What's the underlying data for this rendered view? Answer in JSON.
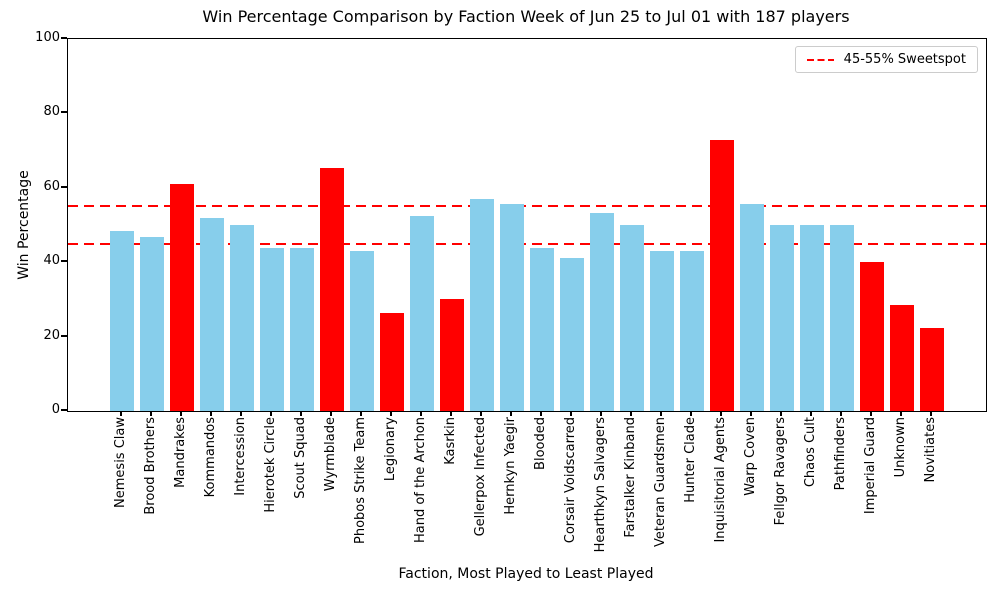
{
  "chart_data": {
    "type": "bar",
    "title": "Win Percentage Comparison by Faction Week of Jun 25 to Jul 01 with 187 players",
    "xlabel": "Faction, Most Played to Least Played",
    "ylabel": "Win Percentage",
    "ylim": [
      0,
      100
    ],
    "yticks": [
      0,
      20,
      40,
      60,
      80,
      100
    ],
    "grid": false,
    "legend": {
      "label": "45-55% Sweetspot",
      "position": "upper right",
      "line_style": "dashed",
      "line_color": "#ff0000"
    },
    "reference_lines": [
      45,
      55
    ],
    "colors": {
      "default_bar": "#87ceeb",
      "outlier_bar": "#ff0000",
      "reference_line": "#ff0000"
    },
    "categories": [
      "Nemesis Claw",
      "Brood Brothers",
      "Mandrakes",
      "Kommandos",
      "Intercession",
      "Hierotek Circle",
      "Scout Squad",
      "Wyrmblade",
      "Phobos Strike Team",
      "Legionary",
      "Hand of the Archon",
      "Kasrkin",
      "Gellerpox Infected",
      "Hernkyn Yaegir",
      "Blooded",
      "Corsair Voidscarred",
      "Hearthkyn Salvagers",
      "Farstalker Kinband",
      "Veteran Guardsmen",
      "Hunter Clade",
      "Inquisitorial Agents",
      "Warp Coven",
      "Fellgor Ravagers",
      "Chaos Cult",
      "Pathfinders",
      "Imperial Guard",
      "Unknown",
      "Novitiates"
    ],
    "values": [
      48.4,
      46.8,
      60.9,
      51.8,
      50.0,
      43.9,
      43.7,
      65.4,
      42.9,
      26.3,
      52.4,
      30.0,
      57.1,
      55.6,
      43.9,
      41.2,
      53.3,
      50.0,
      42.9,
      42.9,
      72.9,
      55.6,
      50.0,
      50.0,
      50.0,
      40.0,
      28.6,
      22.2
    ],
    "bar_colors": [
      "#87ceeb",
      "#87ceeb",
      "#ff0000",
      "#87ceeb",
      "#87ceeb",
      "#87ceeb",
      "#87ceeb",
      "#ff0000",
      "#87ceeb",
      "#ff0000",
      "#87ceeb",
      "#ff0000",
      "#87ceeb",
      "#87ceeb",
      "#87ceeb",
      "#87ceeb",
      "#87ceeb",
      "#87ceeb",
      "#87ceeb",
      "#87ceeb",
      "#ff0000",
      "#87ceeb",
      "#87ceeb",
      "#87ceeb",
      "#87ceeb",
      "#ff0000",
      "#ff0000",
      "#ff0000"
    ]
  }
}
